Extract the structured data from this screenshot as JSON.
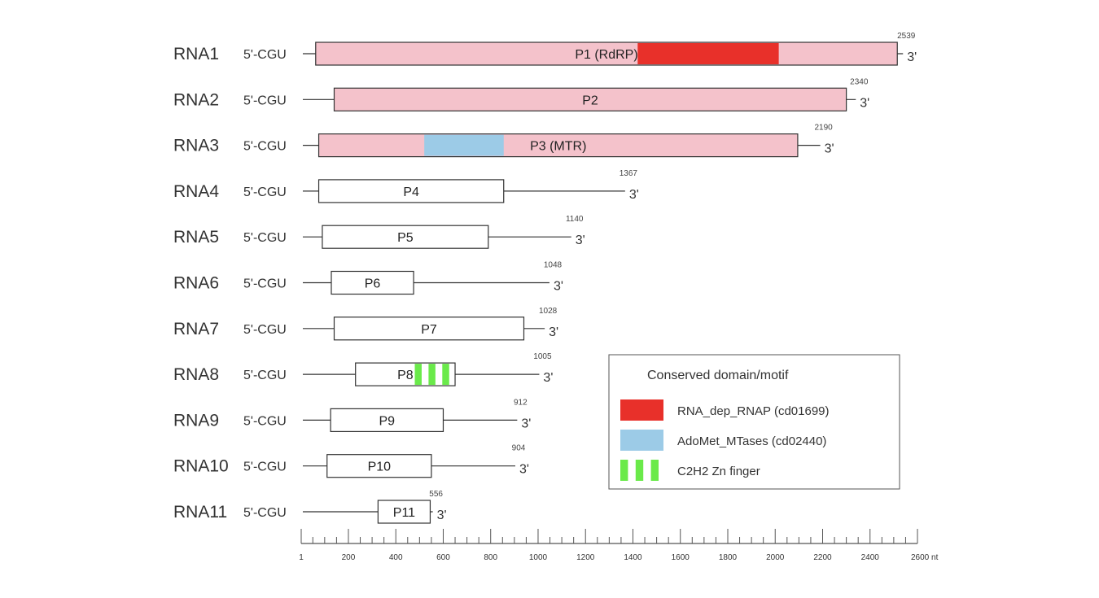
{
  "legend": {
    "title": "Conserved domain/motif",
    "items": [
      {
        "label": "RNA_dep_RNAP (cd01699)",
        "color": "#e8302a",
        "pattern": "solid"
      },
      {
        "label": "AdoMet_MTases (cd02440)",
        "color": "#9ccbe7",
        "pattern": "solid"
      },
      {
        "label": "C2H2 Zn finger",
        "color": "#6aea4a",
        "pattern": "stripes"
      }
    ]
  },
  "scale": {
    "min": 1,
    "max": 2600,
    "unit": "nt",
    "major_ticks": [
      {
        "value": 1,
        "label": "1"
      },
      {
        "value": 200,
        "label": "200"
      },
      {
        "value": 400,
        "label": "400"
      },
      {
        "value": 600,
        "label": "600"
      },
      {
        "value": 800,
        "label": "800"
      },
      {
        "value": 1000,
        "label": "1000"
      },
      {
        "value": 1200,
        "label": "1200"
      },
      {
        "value": 1400,
        "label": "1400"
      },
      {
        "value": 1600,
        "label": "1600"
      },
      {
        "value": 1800,
        "label": "1800"
      },
      {
        "value": 2000,
        "label": "2000"
      },
      {
        "value": 2200,
        "label": "2200"
      },
      {
        "value": 2400,
        "label": "2400"
      },
      {
        "value": 2600,
        "label": "2600 nt"
      }
    ],
    "minor_step": 50
  },
  "colors": {
    "orf_fill_filled": "#f4c2cb",
    "orf_fill_empty": "#ffffff",
    "outline": "#333333"
  },
  "rnas": [
    {
      "name": "RNA1",
      "five_prime": "5'-CGU",
      "length": 2539,
      "three_prime": "3'",
      "orf": {
        "label": "P1 (RdRP)",
        "start": 62,
        "end": 2515,
        "filled": true
      },
      "domains": [
        {
          "type": "RNA_dep_RNAP",
          "start": 1420,
          "end": 2015
        }
      ]
    },
    {
      "name": "RNA2",
      "five_prime": "5'-CGU",
      "length": 2340,
      "three_prime": "3'",
      "orf": {
        "label": "P2",
        "start": 140,
        "end": 2300,
        "filled": true
      },
      "domains": []
    },
    {
      "name": "RNA3",
      "five_prime": "5'-CGU",
      "length": 2190,
      "three_prime": "3'",
      "orf": {
        "label": "P3 (MTR)",
        "start": 75,
        "end": 2095,
        "filled": true
      },
      "domains": [
        {
          "type": "AdoMet_MTases",
          "start": 520,
          "end": 855
        }
      ]
    },
    {
      "name": "RNA4",
      "five_prime": "5'-CGU",
      "length": 1367,
      "three_prime": "3'",
      "orf": {
        "label": "P4",
        "start": 75,
        "end": 855,
        "filled": false
      },
      "domains": []
    },
    {
      "name": "RNA5",
      "five_prime": "5'-CGU",
      "length": 1140,
      "three_prime": "3'",
      "orf": {
        "label": "P5",
        "start": 90,
        "end": 790,
        "filled": false
      },
      "domains": []
    },
    {
      "name": "RNA6",
      "five_prime": "5'-CGU",
      "length": 1048,
      "three_prime": "3'",
      "orf": {
        "label": "P6",
        "start": 128,
        "end": 475,
        "filled": false
      },
      "domains": []
    },
    {
      "name": "RNA7",
      "five_prime": "5'-CGU",
      "length": 1028,
      "three_prime": "3'",
      "orf": {
        "label": "P7",
        "start": 140,
        "end": 940,
        "filled": false
      },
      "domains": []
    },
    {
      "name": "RNA8",
      "five_prime": "5'-CGU",
      "length": 1005,
      "three_prime": "3'",
      "orf": {
        "label": "P8",
        "start": 230,
        "end": 650,
        "filled": false
      },
      "domains": [
        {
          "type": "C2H2_Zn_finger",
          "start": 480,
          "end": 625
        }
      ]
    },
    {
      "name": "RNA9",
      "five_prime": "5'-CGU",
      "length": 912,
      "three_prime": "3'",
      "orf": {
        "label": "P9",
        "start": 125,
        "end": 600,
        "filled": false
      },
      "domains": []
    },
    {
      "name": "RNA10",
      "five_prime": "5'-CGU",
      "length": 904,
      "three_prime": "3'",
      "orf": {
        "label": "P10",
        "start": 110,
        "end": 550,
        "filled": false
      },
      "domains": []
    },
    {
      "name": "RNA11",
      "five_prime": "5'-CGU",
      "length": 556,
      "three_prime": "3'",
      "orf": {
        "label": "P11",
        "start": 325,
        "end": 545,
        "filled": false
      },
      "domains": []
    }
  ]
}
